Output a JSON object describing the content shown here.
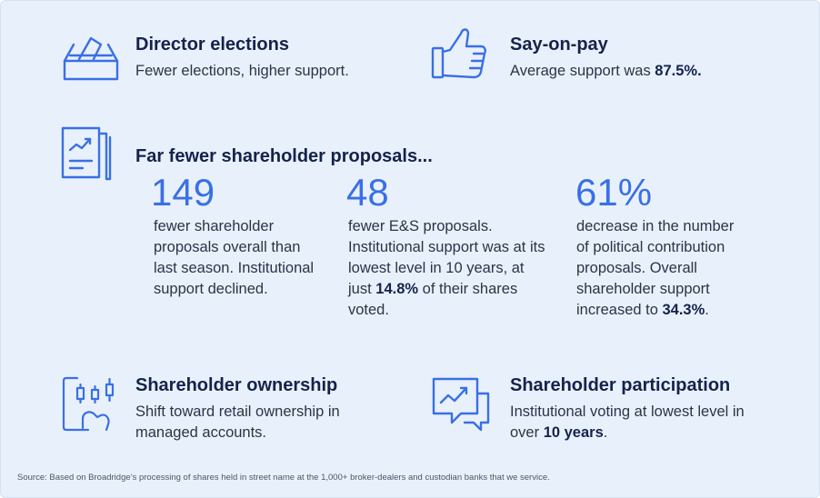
{
  "director": {
    "icon": "ballot-box-icon",
    "title": "Director elections",
    "desc": "Fewer elections, higher support."
  },
  "say_on_pay": {
    "icon": "thumbs-up-icon",
    "title": "Say-on-pay",
    "desc_pre": "Average support was ",
    "desc_value": "87.5%."
  },
  "proposals": {
    "icon": "document-chart-icon",
    "title": "Far fewer shareholder proposals...",
    "stats": [
      {
        "number": "149",
        "text": "fewer shareholder proposals overall than last season. Institutional support declined."
      },
      {
        "number": "48",
        "text_pre": "fewer E&S proposals. Institutional support was at its lowest level in 10 years, at just ",
        "text_bold": "14.8%",
        "text_post": " of their shares voted."
      },
      {
        "number": "61%",
        "text_pre": "decrease in the number of political contribution proposals. Overall shareholder support increased to ",
        "text_bold": "34.3%",
        "text_post": "."
      }
    ]
  },
  "ownership": {
    "icon": "tablet-chart-icon",
    "title": "Shareholder ownership",
    "desc": "Shift toward retail ownership in managed accounts."
  },
  "participation": {
    "icon": "chat-chart-icon",
    "title": "Shareholder participation",
    "desc_pre": "Institutional voting at lowest level in over ",
    "desc_bold": "10 years",
    "desc_post": "."
  },
  "source": "Source: Based on Broadridge’s processing of shares held in street name at the 1,000+ broker-dealers and custodian banks that we service.",
  "colors": {
    "accent": "#3a6fe6",
    "heading": "#14234b",
    "background": "#e8f1fb"
  }
}
